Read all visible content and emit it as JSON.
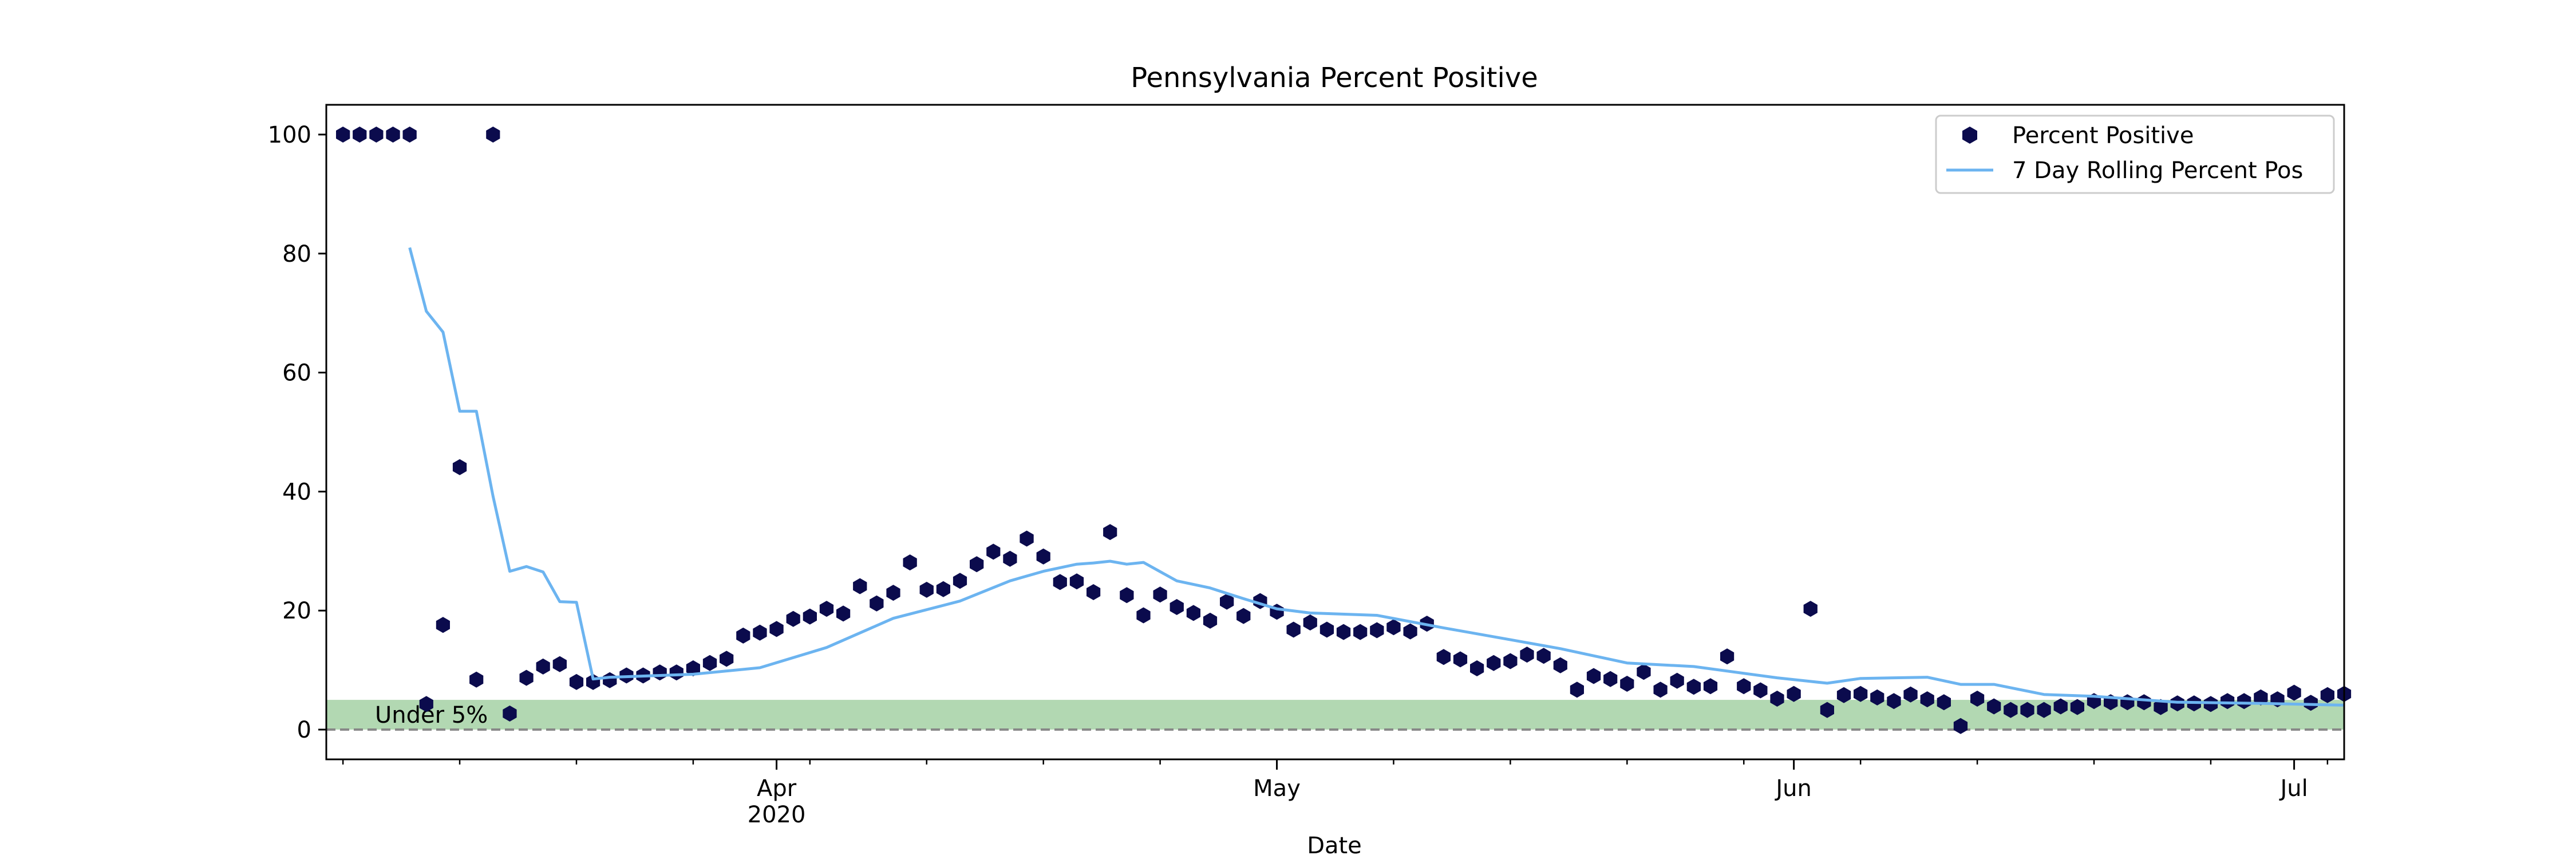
{
  "chart_data": {
    "type": "scatter",
    "title": "Pennsylvania Percent Positive",
    "xlabel": "Date",
    "ylabel": "",
    "x_ticks": [
      {
        "date": "2020-04-01",
        "label": "Apr",
        "sublabel": "2020"
      },
      {
        "date": "2020-05-01",
        "label": "May",
        "sublabel": ""
      },
      {
        "date": "2020-06-01",
        "label": "Jun",
        "sublabel": ""
      },
      {
        "date": "2020-07-01",
        "label": "Jul",
        "sublabel": ""
      }
    ],
    "xlim": [
      "2020-03-05",
      "2020-07-04"
    ],
    "ylim": [
      -5,
      105
    ],
    "y_ticks": [
      0,
      20,
      40,
      60,
      80,
      100
    ],
    "grid": false,
    "legend_position": "top-right",
    "threshold_band": {
      "label": "Under 5%",
      "y_min": 0,
      "y_max": 5,
      "color": "#b2d8b2"
    },
    "zero_line": {
      "y": 0,
      "color": "#888888",
      "style": "dashed"
    },
    "colors": {
      "points": "#0b0b4d",
      "rolling": "#6cb4f0"
    },
    "series": [
      {
        "name": "Percent Positive",
        "kind": "scatter",
        "x": [
          "2020-03-06",
          "2020-03-07",
          "2020-03-08",
          "2020-03-09",
          "2020-03-10",
          "2020-03-11",
          "2020-03-12",
          "2020-03-13",
          "2020-03-14",
          "2020-03-15",
          "2020-03-16",
          "2020-03-17",
          "2020-03-18",
          "2020-03-19",
          "2020-03-20",
          "2020-03-21",
          "2020-03-22",
          "2020-03-23",
          "2020-03-24",
          "2020-03-25",
          "2020-03-26",
          "2020-03-27",
          "2020-03-28",
          "2020-03-29",
          "2020-03-30",
          "2020-03-31",
          "2020-04-01",
          "2020-04-02",
          "2020-04-03",
          "2020-04-04",
          "2020-04-05",
          "2020-04-06",
          "2020-04-07",
          "2020-04-08",
          "2020-04-09",
          "2020-04-10",
          "2020-04-11",
          "2020-04-12",
          "2020-04-13",
          "2020-04-14",
          "2020-04-15",
          "2020-04-16",
          "2020-04-17",
          "2020-04-18",
          "2020-04-19",
          "2020-04-20",
          "2020-04-21",
          "2020-04-22",
          "2020-04-23",
          "2020-04-24",
          "2020-04-25",
          "2020-04-26",
          "2020-04-27",
          "2020-04-28",
          "2020-04-29",
          "2020-04-30",
          "2020-05-01",
          "2020-05-02",
          "2020-05-03",
          "2020-05-04",
          "2020-05-05",
          "2020-05-06",
          "2020-05-07",
          "2020-05-08",
          "2020-05-09",
          "2020-05-10",
          "2020-05-11",
          "2020-05-12",
          "2020-05-13",
          "2020-05-14",
          "2020-05-15",
          "2020-05-16",
          "2020-05-17",
          "2020-05-18",
          "2020-05-19",
          "2020-05-20",
          "2020-05-21",
          "2020-05-22",
          "2020-05-23",
          "2020-05-24",
          "2020-05-25",
          "2020-05-26",
          "2020-05-27",
          "2020-05-28",
          "2020-05-29",
          "2020-05-30",
          "2020-05-31",
          "2020-06-01",
          "2020-06-02",
          "2020-06-03",
          "2020-06-04",
          "2020-06-05",
          "2020-06-06",
          "2020-06-07",
          "2020-06-08",
          "2020-06-09",
          "2020-06-10",
          "2020-06-11",
          "2020-06-12",
          "2020-06-13",
          "2020-06-14",
          "2020-06-15",
          "2020-06-16",
          "2020-06-17",
          "2020-06-18",
          "2020-06-19",
          "2020-06-20",
          "2020-06-21",
          "2020-06-22",
          "2020-06-23",
          "2020-06-24",
          "2020-06-25",
          "2020-06-26",
          "2020-06-27",
          "2020-06-28",
          "2020-06-29",
          "2020-06-30",
          "2020-07-01",
          "2020-07-02",
          "2020-07-03",
          "2020-07-04"
        ],
        "values": [
          100,
          100,
          100,
          100,
          100,
          4.3,
          17.6,
          44.1,
          8.4,
          100,
          2.7,
          8.7,
          10.6,
          11,
          8,
          8,
          8.3,
          9.1,
          9.1,
          9.6,
          9.6,
          10.3,
          11.2,
          11.9,
          15.8,
          16.3,
          16.9,
          18.6,
          19,
          20.3,
          19.5,
          24.1,
          21.2,
          23,
          28.1,
          23.5,
          23.6,
          25,
          27.8,
          29.9,
          28.7,
          32.1,
          29.1,
          24.8,
          24.9,
          23.1,
          33.2,
          22.6,
          19.2,
          22.7,
          20.6,
          19.6,
          18.3,
          21.5,
          19.1,
          21.6,
          19.8,
          16.8,
          18,
          16.8,
          16.4,
          16.4,
          16.7,
          17.2,
          16.5,
          17.8,
          12.2,
          11.8,
          10.3,
          11.2,
          11.5,
          12.6,
          12.4,
          10.8,
          6.7,
          9,
          8.5,
          7.7,
          9.7,
          6.7,
          8.2,
          7.2,
          7.3,
          12.3,
          7.3,
          6.6,
          5.2,
          6,
          20.3,
          3.3,
          5.8,
          6,
          5.4,
          4.8,
          5.9,
          5.1,
          4.6,
          0.6,
          5.2,
          3.9,
          3.3,
          3.3,
          3.3,
          3.9,
          3.8,
          4.8,
          4.6,
          4.6,
          4.6,
          3.8,
          4.4,
          4.4,
          4.3,
          4.8,
          4.8,
          5.4,
          5.1,
          6.2,
          4.5,
          5.8,
          6
        ]
      },
      {
        "name": "7 Day Rolling Percent Pos",
        "kind": "line",
        "x": [
          "2020-03-10",
          "2020-03-11",
          "2020-03-12",
          "2020-03-13",
          "2020-03-14",
          "2020-03-15",
          "2020-03-16",
          "2020-03-17",
          "2020-03-18",
          "2020-03-19",
          "2020-03-20",
          "2020-03-21",
          "2020-03-22",
          "2020-03-23",
          "2020-03-27",
          "2020-03-31",
          "2020-04-04",
          "2020-04-08",
          "2020-04-12",
          "2020-04-15",
          "2020-04-17",
          "2020-04-19",
          "2020-04-20",
          "2020-04-21",
          "2020-04-22",
          "2020-04-23",
          "2020-04-25",
          "2020-04-27",
          "2020-04-29",
          "2020-05-01",
          "2020-05-03",
          "2020-05-07",
          "2020-05-11",
          "2020-05-15",
          "2020-05-18",
          "2020-05-22",
          "2020-05-26",
          "2020-05-31",
          "2020-06-02",
          "2020-06-03",
          "2020-06-05",
          "2020-06-09",
          "2020-06-11",
          "2020-06-13",
          "2020-06-16",
          "2020-06-19",
          "2020-06-24",
          "2020-06-29",
          "2020-07-04"
        ],
        "values": [
          81,
          70.3,
          66.8,
          53.5,
          53.5,
          39.2,
          26.6,
          27.4,
          26.5,
          21.5,
          21.4,
          8.5,
          8.8,
          8.9,
          9.3,
          10.4,
          13.8,
          18.7,
          21.6,
          25,
          26.6,
          27.8,
          28,
          28.3,
          27.8,
          28.1,
          25,
          23.8,
          22,
          20.3,
          19.6,
          19.2,
          17.1,
          15.1,
          13.6,
          11.2,
          10.6,
          8.7,
          8.1,
          7.8,
          8.6,
          8.8,
          7.6,
          7.6,
          5.9,
          5.6,
          4.6,
          4.4,
          4.1
        ]
      }
    ]
  }
}
